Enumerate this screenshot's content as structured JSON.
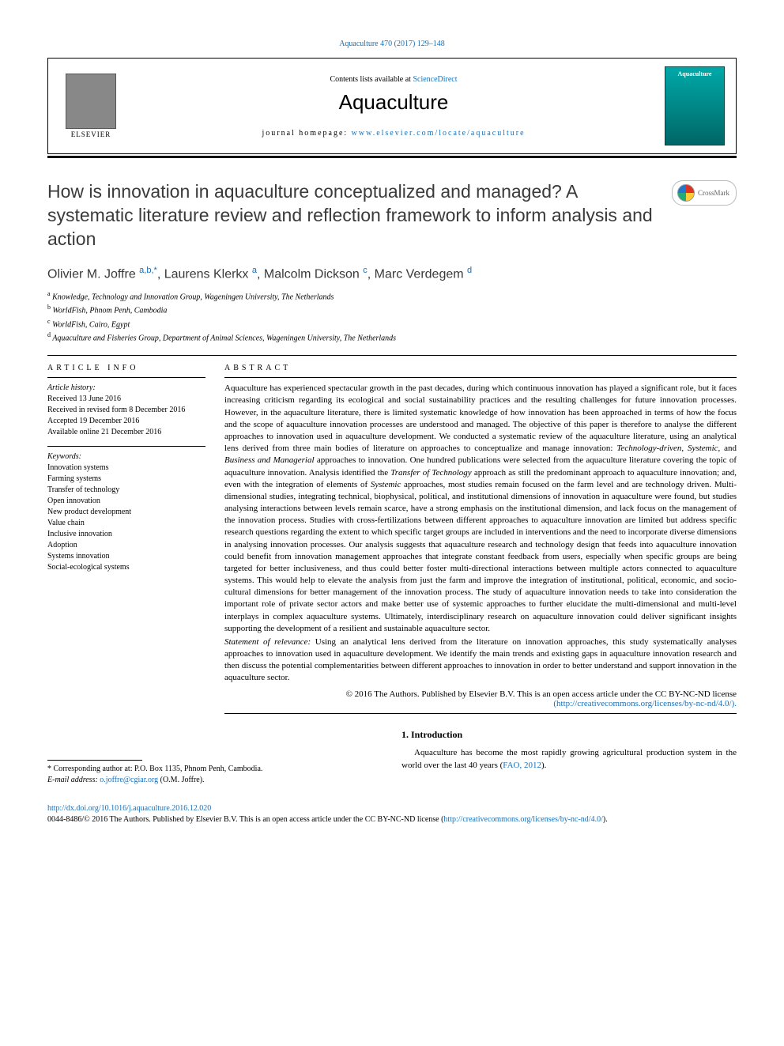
{
  "top_reference": {
    "journal": "Aquaculture",
    "vol_year_pages": "470 (2017) 129–148"
  },
  "header": {
    "elsevier": "ELSEVIER",
    "contents_prefix": "Contents lists available at ",
    "contents_link": "ScienceDirect",
    "journal_name": "Aquaculture",
    "homepage_prefix": "journal homepage: ",
    "homepage_link": "www.elsevier.com/locate/aquaculture",
    "cover_label": "Aquaculture"
  },
  "crossmark": "CrossMark",
  "title": "How is innovation in aquaculture conceptualized and managed? A systematic literature review and reflection framework to inform analysis and action",
  "authors": [
    {
      "name": "Olivier M. Joffre",
      "marks": "a,b,*"
    },
    {
      "name": "Laurens Klerkx",
      "marks": "a"
    },
    {
      "name": "Malcolm Dickson",
      "marks": "c"
    },
    {
      "name": "Marc Verdegem",
      "marks": "d"
    }
  ],
  "affiliations": [
    {
      "sup": "a",
      "text": "Knowledge, Technology and Innovation Group, Wageningen University, The Netherlands"
    },
    {
      "sup": "b",
      "text": "WorldFish, Phnom Penh, Cambodia"
    },
    {
      "sup": "c",
      "text": "WorldFish, Cairo, Egypt"
    },
    {
      "sup": "d",
      "text": "Aquaculture and Fisheries Group, Department of Animal Sciences, Wageningen University, The Netherlands"
    }
  ],
  "article_info": {
    "heading": "ARTICLE INFO",
    "history_label": "Article history:",
    "history": [
      "Received 13 June 2016",
      "Received in revised form 8 December 2016",
      "Accepted 19 December 2016",
      "Available online 21 December 2016"
    ],
    "keywords_label": "Keywords:",
    "keywords": [
      "Innovation systems",
      "Farming systems",
      "Transfer of technology",
      "Open innovation",
      "New product development",
      "Value chain",
      "Inclusive innovation",
      "Adoption",
      "Systems innovation",
      "Social-ecological systems"
    ]
  },
  "abstract": {
    "heading": "ABSTRACT",
    "body": "Aquaculture has experienced spectacular growth in the past decades, during which continuous innovation has played a significant role, but it faces increasing criticism regarding its ecological and social sustainability practices and the resulting challenges for future innovation processes. However, in the aquaculture literature, there is limited systematic knowledge of how innovation has been approached in terms of how the focus and the scope of aquaculture innovation processes are understood and managed. The objective of this paper is therefore to analyse the different approaches to innovation used in aquaculture development. We conducted a systematic review of the aquaculture literature, using an analytical lens derived from three main bodies of literature on approaches to conceptualize and manage innovation: Technology-driven, Systemic, and Business and Managerial approaches to innovation. One hundred publications were selected from the aquaculture literature covering the topic of aquaculture innovation. Analysis identified the Transfer of Technology approach as still the predominant approach to aquaculture innovation; and, even with the integration of elements of Systemic approaches, most studies remain focused on the farm level and are technology driven. Multi-dimensional studies, integrating technical, biophysical, political, and institutional dimensions of innovation in aquaculture were found, but studies analysing interactions between levels remain scarce, have a strong emphasis on the institutional dimension, and lack focus on the management of the innovation process. Studies with cross-fertilizations between different approaches to aquaculture innovation are limited but address specific research questions regarding the extent to which specific target groups are included in interventions and the need to incorporate diverse dimensions in analysing innovation processes. Our analysis suggests that aquaculture research and technology design that feeds into aquaculture innovation could benefit from innovation management approaches that integrate constant feedback from users, especially when specific groups are being targeted for better inclusiveness, and thus could better foster multi-directional interactions between multiple actors connected to aquaculture systems. This would help to elevate the analysis from just the farm and improve the integration of institutional, political, economic, and socio-cultural dimensions for better management of the innovation process. The study of aquaculture innovation needs to take into consideration the important role of private sector actors and make better use of systemic approaches to further elucidate the multi-dimensional and multi-level interplays in complex aquaculture systems. Ultimately, interdisciplinary research on aquaculture innovation could deliver significant insights supporting the development of a resilient and sustainable aquaculture sector.",
    "statement_label": "Statement of relevance:",
    "statement": "Using an analytical lens derived from the literature on innovation approaches, this study systematically analyses approaches to innovation used in aquaculture development. We identify the main trends and existing gaps in aquaculture innovation research and then discuss the potential complementarities between different approaches to innovation in order to better understand and support innovation in the aquaculture sector.",
    "copyright": "© 2016 The Authors. Published by Elsevier B.V. This is an open access article under the CC BY-NC-ND license",
    "license_link": "(http://creativecommons.org/licenses/by-nc-nd/4.0/)."
  },
  "intro": {
    "heading": "1. Introduction",
    "text_start": "Aquaculture has become the most rapidly growing agricultural production system in the world over the last 40 years (",
    "ref": "FAO, 2012",
    "text_end": ")."
  },
  "corresponding": {
    "star": "*",
    "label": "Corresponding author at: ",
    "address": "P.O. Box 1135, Phnom Penh, Cambodia.",
    "email_label": "E-mail address: ",
    "email": "o.joffre@cgiar.org",
    "email_suffix": " (O.M. Joffre)."
  },
  "footer": {
    "doi": "http://dx.doi.org/10.1016/j.aquaculture.2016.12.020",
    "issn_line": "0044-8486/© 2016 The Authors. Published by Elsevier B.V. This is an open access article under the CC BY-NC-ND license (",
    "license_link": "http://creativecommons.org/licenses/by-nc-nd/4.0/",
    "issn_end": ")."
  }
}
